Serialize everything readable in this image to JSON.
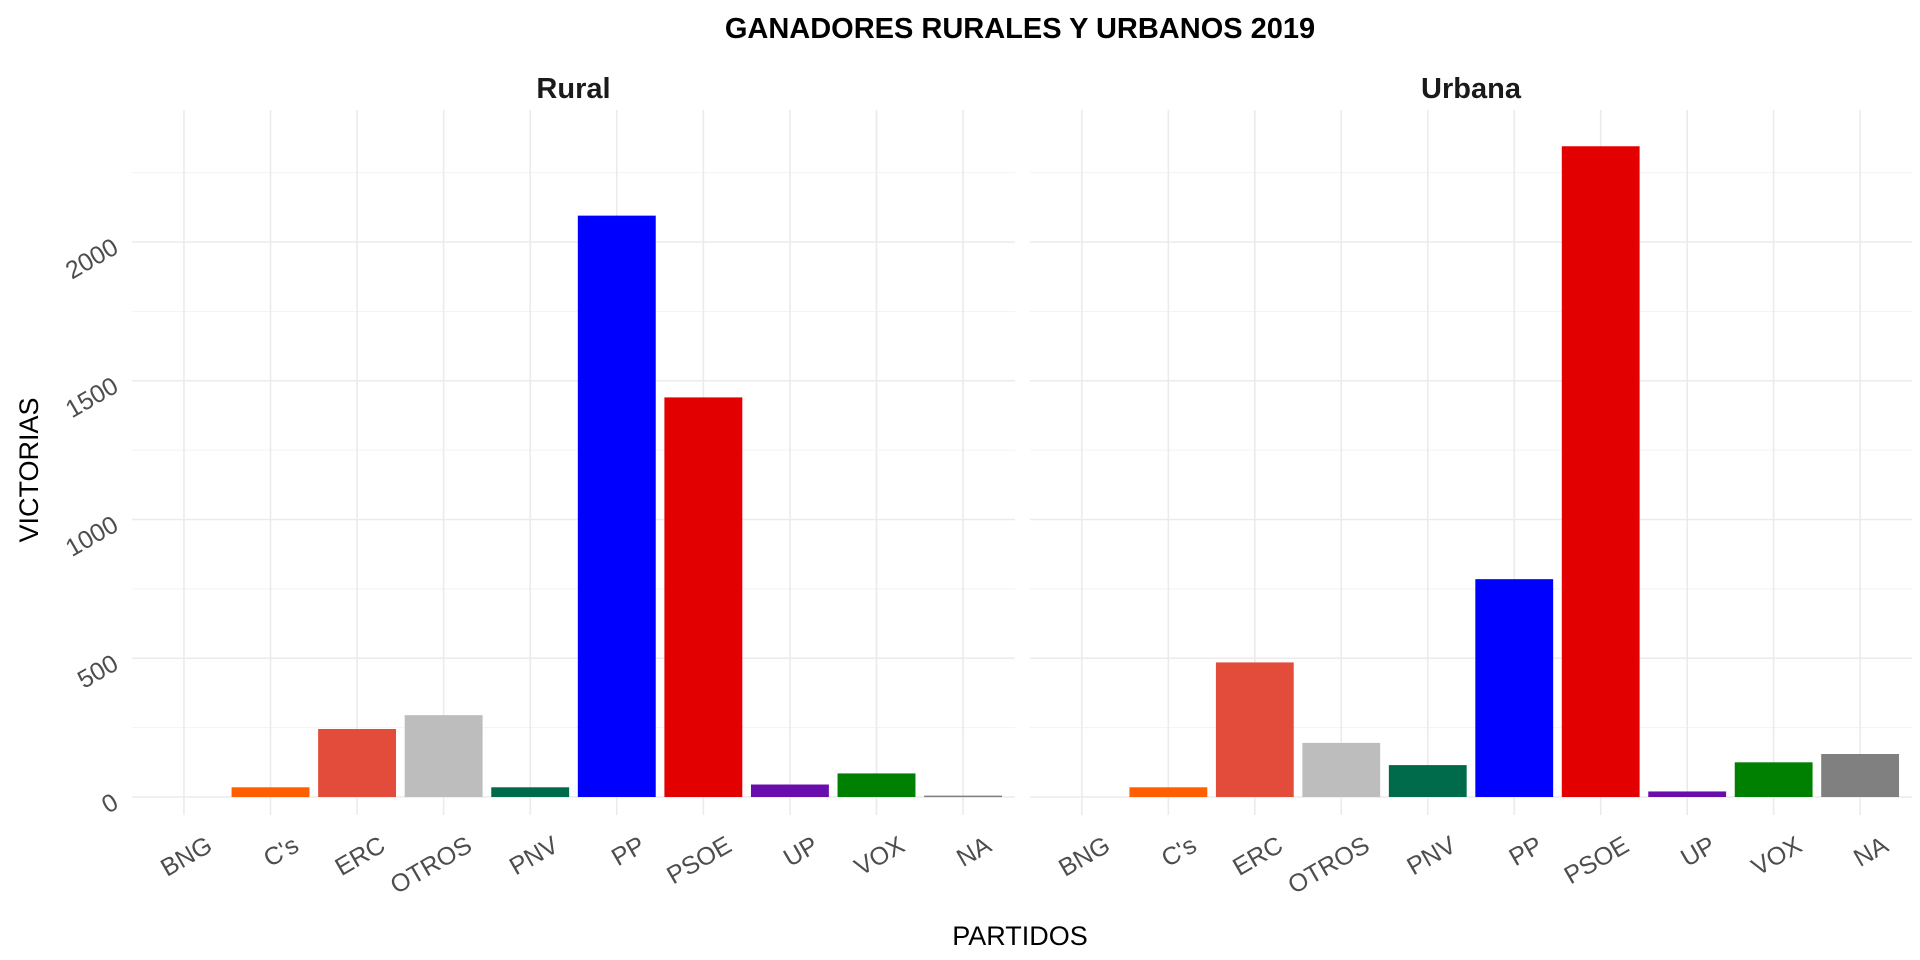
{
  "chart_data": {
    "type": "bar",
    "title": "GANADORES RURALES Y URBANOS 2019",
    "xlabel": "PARTIDOS",
    "ylabel": "VICTORIAS",
    "categories": [
      "BNG",
      "C's",
      "ERC",
      "OTROS",
      "PNV",
      "PP",
      "PSOE",
      "UP",
      "VOX",
      "NA"
    ],
    "colors": {
      "BNG": "#a8d5f0",
      "C's": "#ff5f00",
      "ERC": "#e34c3a",
      "OTROS": "#bdbdbd",
      "PNV": "#006b4a",
      "PP": "#0000ff",
      "PSOE": "#e20000",
      "UP": "#6a0dad",
      "VOX": "#008000",
      "NA": "#808080"
    },
    "ylim": [
      0,
      2450
    ],
    "yticks": [
      "0",
      "500",
      "1000",
      "1500",
      "2000"
    ],
    "ytick_values": [
      0,
      500,
      1000,
      1500,
      2000
    ],
    "grid": true,
    "legend": "none",
    "panels": [
      {
        "name": "Rural",
        "values": [
          0,
          35,
          245,
          295,
          35,
          2095,
          1440,
          45,
          85,
          5
        ]
      },
      {
        "name": "Urbana",
        "values": [
          0,
          35,
          485,
          195,
          115,
          785,
          2345,
          20,
          125,
          155
        ]
      }
    ]
  }
}
